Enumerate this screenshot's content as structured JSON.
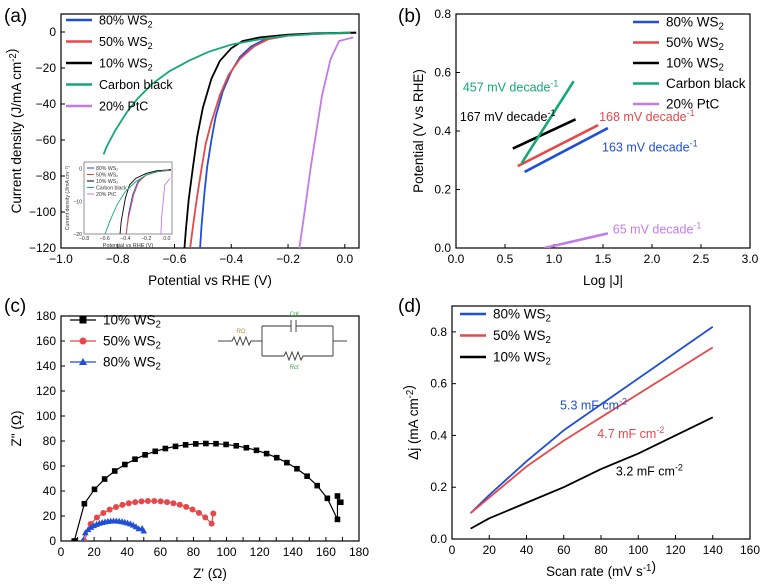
{
  "chart_data": [
    {
      "id": "a",
      "panel_label": "(a)",
      "type": "line",
      "xlabel": "Potential vs RHE (V)",
      "ylabel": "Current density (J/mA cm⁻²)",
      "xlim": [
        -1.0,
        0.05
      ],
      "ylim": [
        -120,
        10
      ],
      "xticks": [
        -1.0,
        -0.8,
        -0.6,
        -0.4,
        -0.2,
        0.0
      ],
      "xtick_labels": [
        "−1.0",
        "−0.8",
        "−0.6",
        "−0.4",
        "−0.2",
        "0.0"
      ],
      "yticks": [
        -120,
        -100,
        -80,
        -60,
        -40,
        -20,
        0
      ],
      "ytick_labels": [
        "−120",
        "−100",
        "−80",
        "−60",
        "−40",
        "−20",
        "0"
      ],
      "legend": [
        "80% WS₂",
        "50% WS₂",
        "10% WS₂",
        "Carbon black",
        "20% PtC"
      ],
      "series": [
        {
          "name": "80% WS₂",
          "color": "#1f4fd6",
          "x": [
            0.04,
            -0.1,
            -0.2,
            -0.28,
            -0.33,
            -0.37,
            -0.4,
            -0.43,
            -0.455,
            -0.47,
            -0.485,
            -0.495,
            -0.505,
            -0.51
          ],
          "y": [
            -0.5,
            -1,
            -2,
            -4,
            -8,
            -14,
            -22,
            -33,
            -47,
            -60,
            -75,
            -90,
            -108,
            -120
          ]
        },
        {
          "name": "50% WS₂",
          "color": "#e8474a",
          "x": [
            0.04,
            -0.1,
            -0.2,
            -0.27,
            -0.32,
            -0.37,
            -0.41,
            -0.44,
            -0.47,
            -0.49,
            -0.505,
            -0.52,
            -0.535,
            -0.545
          ],
          "y": [
            -0.5,
            -1,
            -2,
            -4,
            -8,
            -15,
            -24,
            -35,
            -50,
            -62,
            -76,
            -91,
            -108,
            -120
          ]
        },
        {
          "name": "10% WS₂",
          "color": "#000000",
          "x": [
            0.04,
            -0.1,
            -0.2,
            -0.3,
            -0.36,
            -0.4,
            -0.44,
            -0.47,
            -0.5,
            -0.52,
            -0.535,
            -0.55,
            -0.56,
            -0.565
          ],
          "y": [
            -0.3,
            -0.7,
            -1.5,
            -3,
            -5,
            -9,
            -16,
            -26,
            -42,
            -58,
            -75,
            -93,
            -110,
            -120
          ]
        },
        {
          "name": "Carbon black",
          "color": "#14a878",
          "x": [
            0.02,
            -0.1,
            -0.2,
            -0.3,
            -0.4,
            -0.48,
            -0.55,
            -0.62,
            -0.68,
            -0.73,
            -0.77,
            -0.81,
            -0.84,
            -0.85
          ],
          "y": [
            -0.3,
            -1,
            -2,
            -4,
            -7,
            -11,
            -16,
            -22,
            -29,
            -37,
            -45,
            -55,
            -64,
            -68
          ]
        },
        {
          "name": "20% PtC",
          "color": "#c27be8",
          "x": [
            0.03,
            -0.02,
            -0.05,
            -0.08,
            -0.1,
            -0.12,
            -0.14,
            -0.16
          ],
          "y": [
            -3,
            -5,
            -15,
            -35,
            -55,
            -75,
            -98,
            -120
          ]
        }
      ],
      "inset": {
        "xlabel": "Potential vs RHE (V)",
        "ylabel": "Current density (J/mA cm⁻²)",
        "xlim": [
          -0.8,
          0.05
        ],
        "ylim": [
          -20,
          2
        ],
        "xtick_labels": [
          "−0.8",
          "−0.6",
          "−0.4",
          "−0.2",
          "0.0"
        ],
        "ytick_labels": [
          "0",
          "−10",
          "−20"
        ],
        "legend": [
          "80% WS₂",
          "50% WS₂",
          "10% WS₂",
          "Carbon black",
          "20% PtC"
        ]
      }
    },
    {
      "id": "b",
      "panel_label": "(b)",
      "type": "line",
      "xlabel": "Log |J|",
      "ylabel": "Potential (V vs RHE)",
      "xlim": [
        0,
        3.0
      ],
      "ylim": [
        0,
        0.8
      ],
      "xticks": [
        0,
        0.5,
        1.0,
        1.5,
        2.0,
        2.5,
        3.0
      ],
      "xtick_labels": [
        "0.0",
        "0.5",
        "1.0",
        "1.5",
        "2.0",
        "2.5",
        "3.0"
      ],
      "yticks": [
        0,
        0.2,
        0.4,
        0.6,
        0.8
      ],
      "ytick_labels": [
        "0.0",
        "0.2",
        "0.4",
        "0.6",
        "0.8"
      ],
      "legend": [
        "80% WS₂",
        "50% WS₂",
        "10% WS₂",
        "Carbon black",
        "20% PtC"
      ],
      "series": [
        {
          "name": "80% WS₂",
          "color": "#1f4fd6",
          "x": [
            0.7,
            1.55
          ],
          "y": [
            0.26,
            0.41
          ]
        },
        {
          "name": "50% WS₂",
          "color": "#e8474a",
          "x": [
            0.63,
            1.45
          ],
          "y": [
            0.28,
            0.42
          ]
        },
        {
          "name": "10% WS₂",
          "color": "#000000",
          "x": [
            0.58,
            1.22
          ],
          "y": [
            0.34,
            0.44
          ]
        },
        {
          "name": "Carbon black",
          "color": "#14a878",
          "x": [
            0.67,
            1.2
          ],
          "y": [
            0.29,
            0.57
          ]
        },
        {
          "name": "20% PtC",
          "color": "#c27be8",
          "x": [
            0.9,
            1.55
          ],
          "y": [
            0.0,
            0.05
          ]
        }
      ],
      "annotations": [
        {
          "text": "457 mV decade",
          "sup": "-1",
          "color": "#14a878",
          "x": 0.07,
          "y": 0.535
        },
        {
          "text": "167 mV decade",
          "sup": "-1",
          "color": "#000000",
          "x": 0.04,
          "y": 0.435
        },
        {
          "text": "168 mV decade",
          "sup": "-1",
          "color": "#e8474a",
          "x": 1.46,
          "y": 0.435
        },
        {
          "text": "163 mV decade",
          "sup": "-1",
          "color": "#1f4fd6",
          "x": 1.49,
          "y": 0.33
        },
        {
          "text": "65 mV decade",
          "sup": "-1",
          "color": "#c27be8",
          "x": 1.6,
          "y": 0.05
        }
      ]
    },
    {
      "id": "c",
      "panel_label": "(c)",
      "type": "scatter",
      "xlabel": "Z' (Ω)",
      "ylabel": "Z\" (Ω)",
      "xlim": [
        0,
        180
      ],
      "ylim": [
        0,
        180
      ],
      "xticks": [
        0,
        10,
        20,
        30,
        40,
        50,
        60,
        70,
        80,
        90,
        100,
        110,
        120,
        130,
        140,
        150,
        160,
        170,
        180
      ],
      "xtick_labels": [
        "0",
        "10",
        "20",
        "30",
        "40",
        "50",
        "60",
        "70",
        "80",
        "90",
        "100",
        "110",
        "120",
        "130",
        "140",
        "150",
        "160",
        "170",
        "180"
      ],
      "yticks": [
        0,
        20,
        40,
        60,
        80,
        100,
        120,
        140,
        160,
        180
      ],
      "ytick_labels": [
        "0",
        "20",
        "40",
        "60",
        "80",
        "100",
        "120",
        "140",
        "160",
        "180"
      ],
      "legend": [
        "10% WS₂",
        "50% WS₂",
        "80% WS₂"
      ],
      "series": [
        {
          "name": "10% WS₂",
          "color": "#000000",
          "marker": "square",
          "center": 88.5,
          "radius": 80.5,
          "ry": 78,
          "x_start": 8,
          "x_end": 167,
          "tail": [
            [
              167,
              36
            ],
            [
              169,
              31
            ]
          ]
        },
        {
          "name": "50% WS₂",
          "color": "#e8474a",
          "marker": "circle",
          "center": 54.5,
          "radius": 40.5,
          "ry": 32,
          "x_start": 14,
          "x_end": 91,
          "tail": [
            [
              92,
              22
            ]
          ]
        },
        {
          "name": "80% WS₂",
          "color": "#1f4fd6",
          "marker": "triangle",
          "center": 32,
          "radius": 19,
          "ry": 16,
          "x_start": 13,
          "x_end": 47,
          "tail": [
            [
              49,
              10
            ],
            [
              50,
              8
            ]
          ]
        }
      ],
      "circuit_labels": {
        "r0": "RΩ",
        "cdl": "Cdl",
        "rct": "Rct"
      }
    },
    {
      "id": "d",
      "panel_label": "(d)",
      "type": "line",
      "xlabel": "Scan rate (mV s⁻¹)",
      "ylabel": "Δj (mA cm⁻²)",
      "xlim": [
        0,
        160
      ],
      "ylim": [
        0,
        0.9
      ],
      "xticks": [
        0,
        20,
        40,
        60,
        80,
        100,
        120,
        140,
        160
      ],
      "xtick_labels": [
        "0",
        "20",
        "40",
        "60",
        "80",
        "100",
        "120",
        "140",
        "160"
      ],
      "yticks": [
        0,
        0.2,
        0.4,
        0.6,
        0.8
      ],
      "ytick_labels": [
        "0.0",
        "0.2",
        "0.4",
        "0.6",
        "0.8"
      ],
      "legend": [
        "80% WS₂",
        "50% WS₂",
        "10% WS₂"
      ],
      "series": [
        {
          "name": "80% WS₂",
          "color": "#1f4fd6",
          "x": [
            10,
            20,
            40,
            60,
            80,
            100,
            120,
            140
          ],
          "y": [
            0.1,
            0.17,
            0.3,
            0.42,
            0.52,
            0.62,
            0.72,
            0.82
          ]
        },
        {
          "name": "50% WS₂",
          "color": "#e8474a",
          "x": [
            10,
            20,
            40,
            60,
            80,
            100,
            120,
            140
          ],
          "y": [
            0.1,
            0.16,
            0.28,
            0.38,
            0.47,
            0.56,
            0.65,
            0.74
          ]
        },
        {
          "name": "10% WS₂",
          "color": "#000000",
          "x": [
            10,
            20,
            40,
            60,
            80,
            100,
            120,
            140
          ],
          "y": [
            0.04,
            0.08,
            0.14,
            0.2,
            0.27,
            0.33,
            0.4,
            0.47
          ]
        }
      ],
      "annotations": [
        {
          "text": "5.3 mF cm",
          "sup": "-2",
          "color": "#1f4fd6",
          "x": 58,
          "y": 0.5
        },
        {
          "text": "4.7 mF cm",
          "sup": "-2",
          "color": "#e8474a",
          "x": 78,
          "y": 0.39
        },
        {
          "text": "3.2 mF cm",
          "sup": "-2",
          "color": "#000000",
          "x": 88,
          "y": 0.245
        }
      ]
    }
  ]
}
